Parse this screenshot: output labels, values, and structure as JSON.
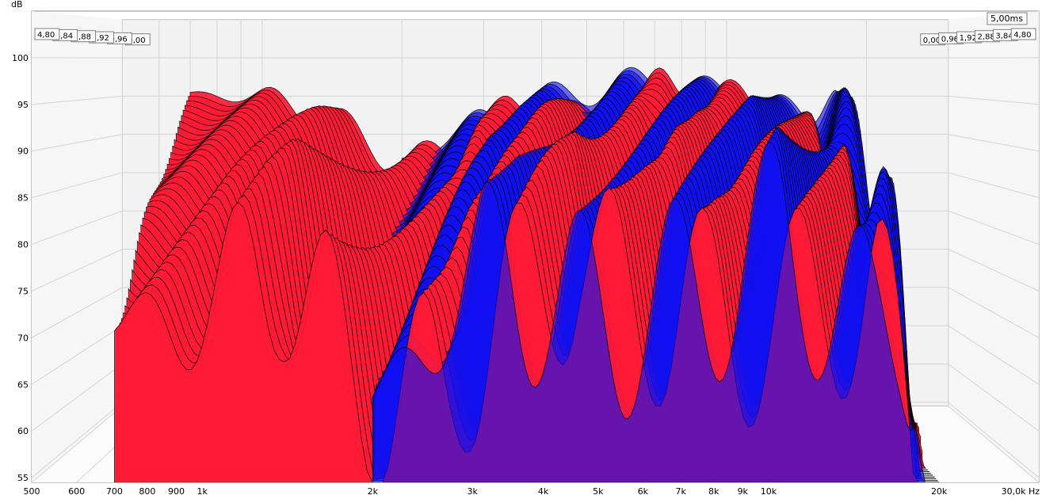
{
  "chart_data": {
    "type": "area",
    "subtype": "waterfall-3d",
    "unit_y": "dB",
    "unit_x": "Hz",
    "time_readout": "5,00ms",
    "y_ticks": [
      100,
      95,
      90,
      85,
      80,
      75,
      70,
      65,
      60,
      55
    ],
    "ylim": [
      54.5,
      105
    ],
    "xlim": [
      500,
      30000
    ],
    "x_scale": "log",
    "x_ticks": [
      {
        "v": 500,
        "label": "500"
      },
      {
        "v": 600,
        "label": "600"
      },
      {
        "v": 700,
        "label": "700"
      },
      {
        "v": 800,
        "label": "800"
      },
      {
        "v": 900,
        "label": "900"
      },
      {
        "v": 1000,
        "label": "1k"
      },
      {
        "v": 2000,
        "label": "2k"
      },
      {
        "v": 3000,
        "label": "3k"
      },
      {
        "v": 4000,
        "label": "4k"
      },
      {
        "v": 5000,
        "label": "5k"
      },
      {
        "v": 6000,
        "label": "6k"
      },
      {
        "v": 7000,
        "label": "7k"
      },
      {
        "v": 8000,
        "label": "8k"
      },
      {
        "v": 9000,
        "label": "9k"
      },
      {
        "v": 10000,
        "label": "10k"
      },
      {
        "v": 20000,
        "label": "20k"
      },
      {
        "v": 30000,
        "label": "30,0k Hz"
      }
    ],
    "time_ticks": [
      "0,00",
      "0,96",
      "1,92",
      "2,88",
      "3,84",
      "4,80"
    ],
    "grid": true,
    "colors": {
      "series_a": "#ff1a35",
      "series_b": "#1010f0",
      "outline": "#000000",
      "grid": "#d4d4d4",
      "wall": "#f2f2f2"
    },
    "series": [
      {
        "color": "#ff1a35",
        "x": [
          700,
          800,
          1000,
          1300,
          2000,
          2600,
          3000,
          3500,
          4000,
          5000,
          6500,
          7300,
          8000,
          9000,
          10000,
          15000,
          20000
        ],
        "values": [
          95.1,
          95.2,
          94.9,
          93.0,
          86.6,
          88.0,
          92.0,
          93.5,
          94.5,
          92.0,
          95.0,
          97.0,
          96.3,
          95.0,
          95.2,
          91.0,
          64.5
        ]
      },
      {
        "color": "#1010f0",
        "x": [
          2000,
          3000,
          4000,
          7000,
          10000,
          15000,
          17000,
          18000,
          20000
        ],
        "values": [
          86.5,
          92.0,
          94.8,
          97.0,
          95.3,
          92.5,
          96.8,
          94.5,
          64.5
        ]
      }
    ]
  }
}
